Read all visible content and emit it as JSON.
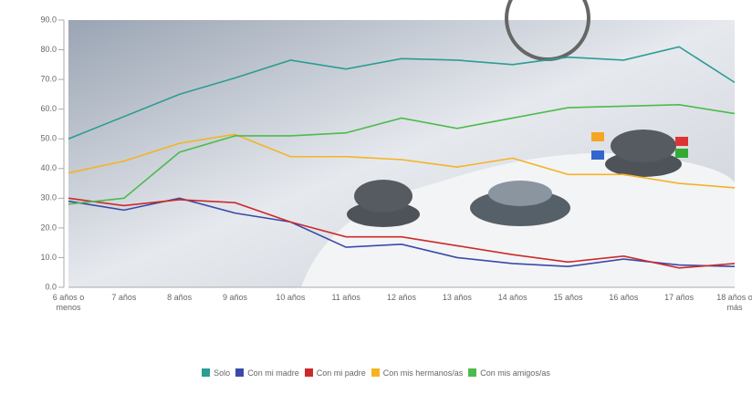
{
  "chart_data": {
    "type": "line",
    "categories": [
      "6 años o menos",
      "7 años",
      "8 años",
      "9 años",
      "10 años",
      "11 años",
      "12 años",
      "13 años",
      "14 años",
      "15 años",
      "16 años",
      "17 años",
      "18 años o más"
    ],
    "series": [
      {
        "name": "Solo",
        "color": "#2a9d94",
        "values": [
          50,
          57.5,
          65,
          70.5,
          76.5,
          73.5,
          77,
          76.5,
          75,
          77.5,
          76.5,
          81,
          69
        ]
      },
      {
        "name": "Con mi madre",
        "color": "#3a4aa8",
        "values": [
          29,
          26,
          30,
          25,
          22,
          13.5,
          14.5,
          10,
          8,
          7,
          9.5,
          7.5,
          7
        ]
      },
      {
        "name": "Con mi padre",
        "color": "#cc2a2a",
        "values": [
          30,
          27.5,
          29.5,
          28.5,
          22,
          17,
          17,
          14,
          11,
          8.5,
          10.5,
          6.5,
          8
        ]
      },
      {
        "name": "Con mis hermanos/as",
        "color": "#f5b324",
        "values": [
          38.5,
          42.5,
          48.5,
          51.5,
          44,
          44,
          43,
          40.5,
          43.5,
          38,
          38,
          35,
          33.5
        ]
      },
      {
        "name": "Con mis amigos/as",
        "color": "#4cbb4c",
        "values": [
          28,
          30,
          45.5,
          51,
          51,
          52,
          57,
          53.5,
          57,
          60.5,
          61,
          61.5,
          58.5
        ]
      }
    ],
    "ylim": [
      0,
      90
    ],
    "yticks": [
      {
        "value": 0,
        "label": "0.0"
      },
      {
        "value": 10,
        "label": "10.0"
      },
      {
        "value": 20,
        "label": "20.0"
      },
      {
        "value": 30,
        "label": "30.0"
      },
      {
        "value": 40,
        "label": "40.0"
      },
      {
        "value": 50,
        "label": "50.0"
      },
      {
        "value": 60,
        "label": "60.0"
      },
      {
        "value": 70,
        "label": "70.0"
      },
      {
        "value": 80,
        "label": "80.0"
      },
      {
        "value": 90,
        "label": "90.0"
      }
    ],
    "legend": "bottom"
  }
}
